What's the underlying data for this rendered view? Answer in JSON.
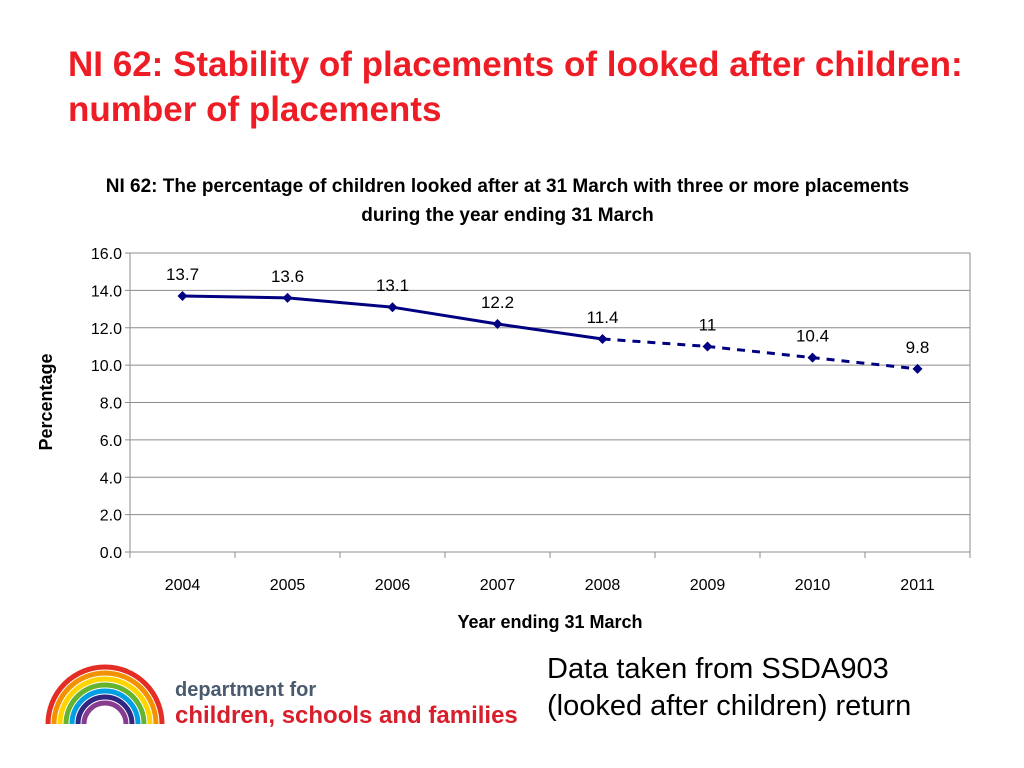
{
  "slide": {
    "title": "NI 62: Stability of placements of looked after children: number of placements",
    "note_line1": "Data taken from SSDA903",
    "note_line2": "(looked after children) return"
  },
  "logo": {
    "line1": "department for",
    "line2": "children, schools and families"
  },
  "chart_data": {
    "type": "line",
    "title": "NI 62: The percentage of children looked after at 31 March with three or more placements during the year ending 31 March",
    "xlabel": "Year ending 31 March",
    "ylabel": "Percentage",
    "ylim": [
      0,
      16
    ],
    "yticks": [
      "0.0",
      "2.0",
      "4.0",
      "6.0",
      "8.0",
      "10.0",
      "12.0",
      "14.0",
      "16.0"
    ],
    "categories": [
      "2004",
      "2005",
      "2006",
      "2007",
      "2008",
      "2009",
      "2010",
      "2011"
    ],
    "series": [
      {
        "values": [
          13.7,
          13.6,
          13.1,
          12.2,
          11.4,
          11,
          10.4,
          9.8
        ],
        "labels": [
          "13.7",
          "13.6",
          "13.1",
          "12.2",
          "11.4",
          "11",
          "10.4",
          "9.8"
        ],
        "solid_until_index": 4,
        "color": "#000080"
      }
    ],
    "grid": true,
    "legend": "none"
  },
  "colors": {
    "title": "#ee1c25",
    "line": "#000080",
    "grid": "#8c8c8c"
  }
}
